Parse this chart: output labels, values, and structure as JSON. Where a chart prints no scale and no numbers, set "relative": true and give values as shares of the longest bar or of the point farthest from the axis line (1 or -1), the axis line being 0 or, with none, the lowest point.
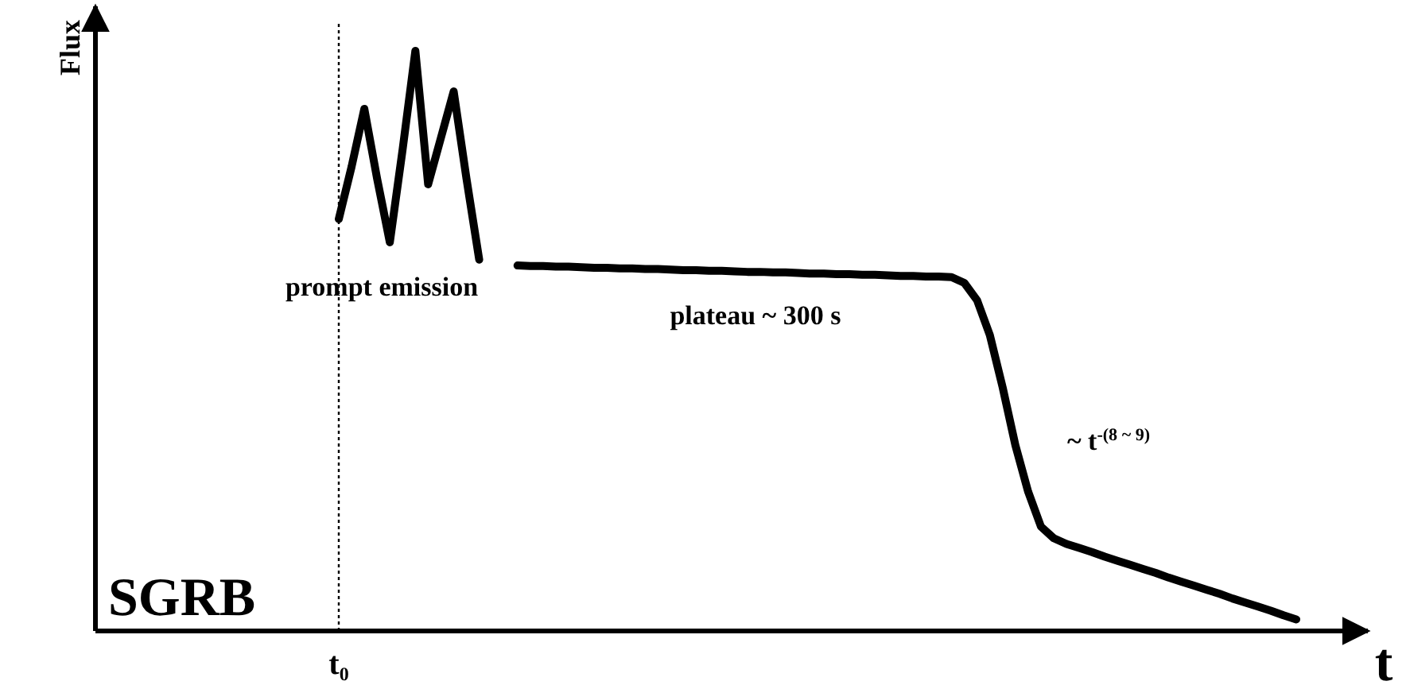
{
  "chart_data": {
    "type": "line",
    "relative": true,
    "xlabel": "t",
    "categories": [
      null,
      null,
      null,
      null,
      null,
      null,
      null,
      null,
      null,
      null,
      null,
      null,
      null,
      null,
      null,
      null,
      null,
      null,
      null,
      null,
      null,
      null,
      null,
      null,
      null,
      null,
      null,
      null,
      null,
      null,
      null,
      null,
      null,
      null,
      null,
      null,
      null,
      null,
      null,
      null,
      null,
      null,
      null,
      null,
      null,
      null,
      null,
      null,
      null,
      null,
      null,
      null,
      null,
      null,
      null,
      null,
      null,
      null,
      null,
      null,
      null,
      null,
      null,
      null,
      null,
      null,
      null,
      null,
      null,
      null,
      null,
      null,
      null,
      null,
      null,
      null
    ],
    "series": [
      {
        "color": "#000000",
        "values": [
          0.71,
          0.8,
          0.9,
          0.78,
          0.67,
          0.83,
          1.0,
          0.77,
          0.85,
          0.93,
          0.78,
          0.64,
          null,
          null,
          null,
          null,
          null,
          null,
          null,
          null,
          null,
          null,
          null,
          null,
          null,
          null,
          null,
          null,
          null,
          null,
          null,
          null,
          null,
          null,
          null,
          null,
          null,
          null,
          null,
          null,
          null,
          null,
          null,
          null,
          null,
          null,
          null,
          null,
          null,
          null,
          null,
          null,
          null,
          null,
          null,
          null,
          null,
          null,
          null,
          null,
          null,
          null,
          null,
          null,
          null,
          null,
          null,
          null,
          null,
          null,
          null,
          null,
          null,
          null,
          null,
          null
        ]
      },
      {
        "color": "#000000",
        "values": [
          null,
          null,
          null,
          null,
          null,
          null,
          null,
          null,
          null,
          null,
          null,
          null,
          null,
          null,
          0.63,
          0.629,
          0.629,
          0.628,
          0.628,
          0.627,
          0.626,
          0.626,
          0.625,
          0.625,
          0.624,
          0.624,
          0.623,
          0.622,
          0.622,
          0.621,
          0.621,
          0.62,
          0.619,
          0.619,
          0.618,
          0.618,
          0.617,
          0.616,
          0.616,
          0.615,
          0.615,
          0.614,
          0.614,
          0.613,
          0.612,
          0.612,
          0.611,
          0.611,
          0.61,
          0.6,
          0.57,
          0.51,
          0.42,
          0.32,
          0.24,
          0.18,
          0.16,
          0.15,
          0.143,
          0.136,
          0.128,
          0.121,
          0.114,
          0.107,
          0.1,
          0.092,
          0.085,
          0.078,
          0.071,
          0.064,
          0.056,
          0.049,
          0.042,
          0.035,
          0.027,
          0.02
        ]
      }
    ],
    "ref_lines": [
      {
        "axis": "x",
        "label": "t₀",
        "line_style": "dotted",
        "color": "#000000"
      }
    ],
    "annotations": [
      "prompt emission",
      "plateau ~ 300 s",
      "~ t$^{-(8 ~ 9)}$",
      "SGRB",
      "Flux"
    ]
  }
}
